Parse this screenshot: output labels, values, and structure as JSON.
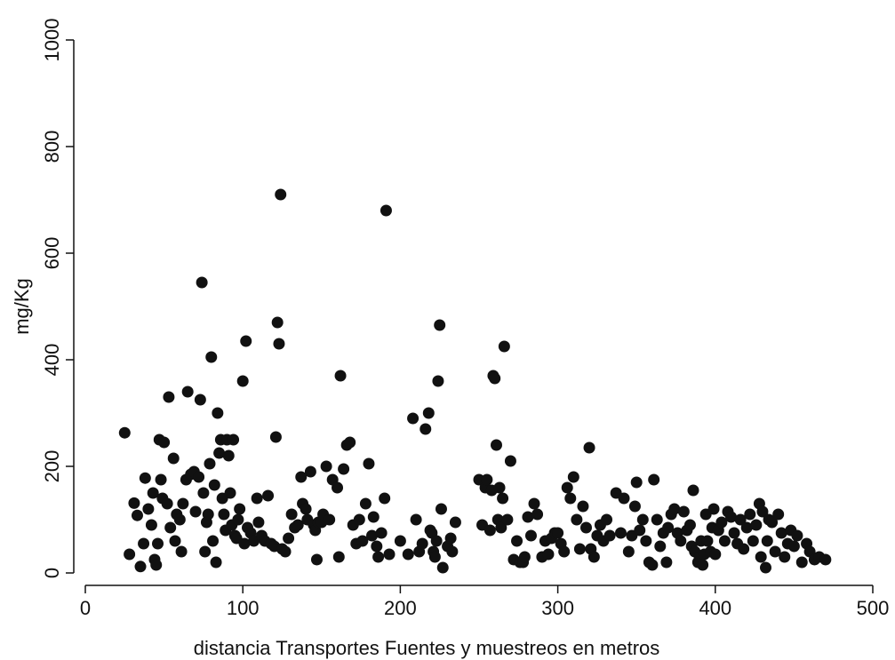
{
  "chart_data": {
    "type": "scatter",
    "title": "",
    "xlabel": "distancia Transportes Fuentes y muestreos en metros",
    "ylabel": "mg/Kg",
    "xlim": [
      0,
      500
    ],
    "ylim": [
      0,
      1000
    ],
    "xticks": [
      "0",
      "100",
      "200",
      "300",
      "400",
      "500"
    ],
    "yticks": [
      "0",
      "200",
      "400",
      "600",
      "800",
      "1000"
    ],
    "grid": false,
    "legend": "none",
    "marker_color": "#111111",
    "points": [
      [
        25,
        263
      ],
      [
        28,
        35
      ],
      [
        31,
        131
      ],
      [
        33,
        108
      ],
      [
        35,
        12
      ],
      [
        37,
        55
      ],
      [
        38,
        178
      ],
      [
        40,
        120
      ],
      [
        42,
        90
      ],
      [
        43,
        150
      ],
      [
        44,
        25
      ],
      [
        45,
        15
      ],
      [
        46,
        55
      ],
      [
        47,
        250
      ],
      [
        48,
        175
      ],
      [
        49,
        140
      ],
      [
        50,
        245
      ],
      [
        52,
        130
      ],
      [
        53,
        330
      ],
      [
        54,
        85
      ],
      [
        56,
        215
      ],
      [
        57,
        60
      ],
      [
        58,
        110
      ],
      [
        60,
        100
      ],
      [
        61,
        40
      ],
      [
        62,
        130
      ],
      [
        64,
        175
      ],
      [
        65,
        340
      ],
      [
        67,
        185
      ],
      [
        69,
        190
      ],
      [
        70,
        115
      ],
      [
        72,
        180
      ],
      [
        73,
        325
      ],
      [
        74,
        545
      ],
      [
        75,
        150
      ],
      [
        76,
        40
      ],
      [
        77,
        95
      ],
      [
        78,
        110
      ],
      [
        79,
        205
      ],
      [
        80,
        405
      ],
      [
        81,
        60
      ],
      [
        82,
        165
      ],
      [
        83,
        20
      ],
      [
        84,
        300
      ],
      [
        85,
        225
      ],
      [
        86,
        250
      ],
      [
        87,
        140
      ],
      [
        88,
        110
      ],
      [
        89,
        80
      ],
      [
        90,
        250
      ],
      [
        91,
        220
      ],
      [
        92,
        150
      ],
      [
        93,
        90
      ],
      [
        94,
        250
      ],
      [
        95,
        70
      ],
      [
        96,
        65
      ],
      [
        97,
        100
      ],
      [
        98,
        120
      ],
      [
        100,
        360
      ],
      [
        101,
        55
      ],
      [
        102,
        435
      ],
      [
        103,
        85
      ],
      [
        105,
        75
      ],
      [
        107,
        60
      ],
      [
        109,
        140
      ],
      [
        110,
        95
      ],
      [
        112,
        70
      ],
      [
        114,
        60
      ],
      [
        116,
        145
      ],
      [
        118,
        55
      ],
      [
        120,
        50
      ],
      [
        121,
        255
      ],
      [
        122,
        470
      ],
      [
        123,
        430
      ],
      [
        124,
        710
      ],
      [
        125,
        45
      ],
      [
        127,
        40
      ],
      [
        129,
        65
      ],
      [
        131,
        110
      ],
      [
        133,
        85
      ],
      [
        135,
        90
      ],
      [
        137,
        180
      ],
      [
        138,
        130
      ],
      [
        140,
        120
      ],
      [
        141,
        100
      ],
      [
        143,
        190
      ],
      [
        145,
        90
      ],
      [
        146,
        80
      ],
      [
        147,
        25
      ],
      [
        148,
        95
      ],
      [
        150,
        95
      ],
      [
        151,
        110
      ],
      [
        153,
        200
      ],
      [
        155,
        100
      ],
      [
        157,
        175
      ],
      [
        160,
        160
      ],
      [
        161,
        30
      ],
      [
        162,
        370
      ],
      [
        164,
        195
      ],
      [
        166,
        240
      ],
      [
        168,
        245
      ],
      [
        170,
        90
      ],
      [
        172,
        55
      ],
      [
        174,
        100
      ],
      [
        176,
        60
      ],
      [
        178,
        130
      ],
      [
        180,
        205
      ],
      [
        182,
        70
      ],
      [
        183,
        105
      ],
      [
        185,
        50
      ],
      [
        186,
        30
      ],
      [
        188,
        75
      ],
      [
        190,
        140
      ],
      [
        191,
        680
      ],
      [
        193,
        35
      ],
      [
        200,
        60
      ],
      [
        205,
        35
      ],
      [
        208,
        290
      ],
      [
        210,
        100
      ],
      [
        212,
        40
      ],
      [
        214,
        55
      ],
      [
        216,
        270
      ],
      [
        218,
        300
      ],
      [
        219,
        80
      ],
      [
        220,
        75
      ],
      [
        221,
        40
      ],
      [
        222,
        30
      ],
      [
        223,
        60
      ],
      [
        224,
        360
      ],
      [
        225,
        465
      ],
      [
        226,
        120
      ],
      [
        227,
        10
      ],
      [
        230,
        50
      ],
      [
        232,
        65
      ],
      [
        233,
        40
      ],
      [
        235,
        95
      ],
      [
        250,
        175
      ],
      [
        252,
        90
      ],
      [
        254,
        160
      ],
      [
        255,
        175
      ],
      [
        257,
        80
      ],
      [
        258,
        155
      ],
      [
        259,
        370
      ],
      [
        260,
        365
      ],
      [
        261,
        240
      ],
      [
        262,
        100
      ],
      [
        263,
        160
      ],
      [
        264,
        85
      ],
      [
        265,
        140
      ],
      [
        266,
        425
      ],
      [
        268,
        100
      ],
      [
        270,
        210
      ],
      [
        272,
        25
      ],
      [
        274,
        60
      ],
      [
        276,
        20
      ],
      [
        278,
        20
      ],
      [
        279,
        30
      ],
      [
        281,
        105
      ],
      [
        283,
        70
      ],
      [
        285,
        130
      ],
      [
        287,
        110
      ],
      [
        290,
        30
      ],
      [
        292,
        60
      ],
      [
        294,
        35
      ],
      [
        296,
        65
      ],
      [
        298,
        75
      ],
      [
        300,
        75
      ],
      [
        302,
        55
      ],
      [
        304,
        40
      ],
      [
        306,
        160
      ],
      [
        308,
        140
      ],
      [
        310,
        180
      ],
      [
        312,
        100
      ],
      [
        314,
        45
      ],
      [
        316,
        125
      ],
      [
        318,
        85
      ],
      [
        320,
        235
      ],
      [
        321,
        45
      ],
      [
        323,
        30
      ],
      [
        325,
        70
      ],
      [
        327,
        90
      ],
      [
        329,
        60
      ],
      [
        331,
        100
      ],
      [
        333,
        70
      ],
      [
        337,
        150
      ],
      [
        340,
        75
      ],
      [
        342,
        140
      ],
      [
        345,
        40
      ],
      [
        347,
        70
      ],
      [
        349,
        125
      ],
      [
        350,
        170
      ],
      [
        352,
        80
      ],
      [
        354,
        100
      ],
      [
        356,
        60
      ],
      [
        358,
        20
      ],
      [
        360,
        15
      ],
      [
        361,
        175
      ],
      [
        363,
        100
      ],
      [
        365,
        50
      ],
      [
        367,
        75
      ],
      [
        369,
        20
      ],
      [
        370,
        85
      ],
      [
        372,
        110
      ],
      [
        374,
        120
      ],
      [
        376,
        75
      ],
      [
        378,
        60
      ],
      [
        380,
        115
      ],
      [
        382,
        80
      ],
      [
        384,
        90
      ],
      [
        385,
        50
      ],
      [
        386,
        155
      ],
      [
        387,
        40
      ],
      [
        389,
        20
      ],
      [
        390,
        30
      ],
      [
        391,
        60
      ],
      [
        392,
        15
      ],
      [
        393,
        35
      ],
      [
        394,
        110
      ],
      [
        395,
        60
      ],
      [
        397,
        40
      ],
      [
        398,
        85
      ],
      [
        399,
        120
      ],
      [
        400,
        35
      ],
      [
        402,
        80
      ],
      [
        404,
        95
      ],
      [
        406,
        60
      ],
      [
        408,
        115
      ],
      [
        410,
        105
      ],
      [
        412,
        75
      ],
      [
        414,
        55
      ],
      [
        416,
        100
      ],
      [
        418,
        45
      ],
      [
        420,
        85
      ],
      [
        422,
        110
      ],
      [
        424,
        60
      ],
      [
        426,
        90
      ],
      [
        428,
        130
      ],
      [
        429,
        30
      ],
      [
        430,
        115
      ],
      [
        432,
        10
      ],
      [
        433,
        60
      ],
      [
        434,
        100
      ],
      [
        436,
        95
      ],
      [
        438,
        40
      ],
      [
        440,
        110
      ],
      [
        442,
        75
      ],
      [
        444,
        30
      ],
      [
        446,
        55
      ],
      [
        448,
        80
      ],
      [
        450,
        50
      ],
      [
        452,
        70
      ],
      [
        455,
        20
      ],
      [
        458,
        55
      ],
      [
        460,
        40
      ],
      [
        463,
        25
      ],
      [
        466,
        30
      ],
      [
        470,
        25
      ]
    ]
  }
}
